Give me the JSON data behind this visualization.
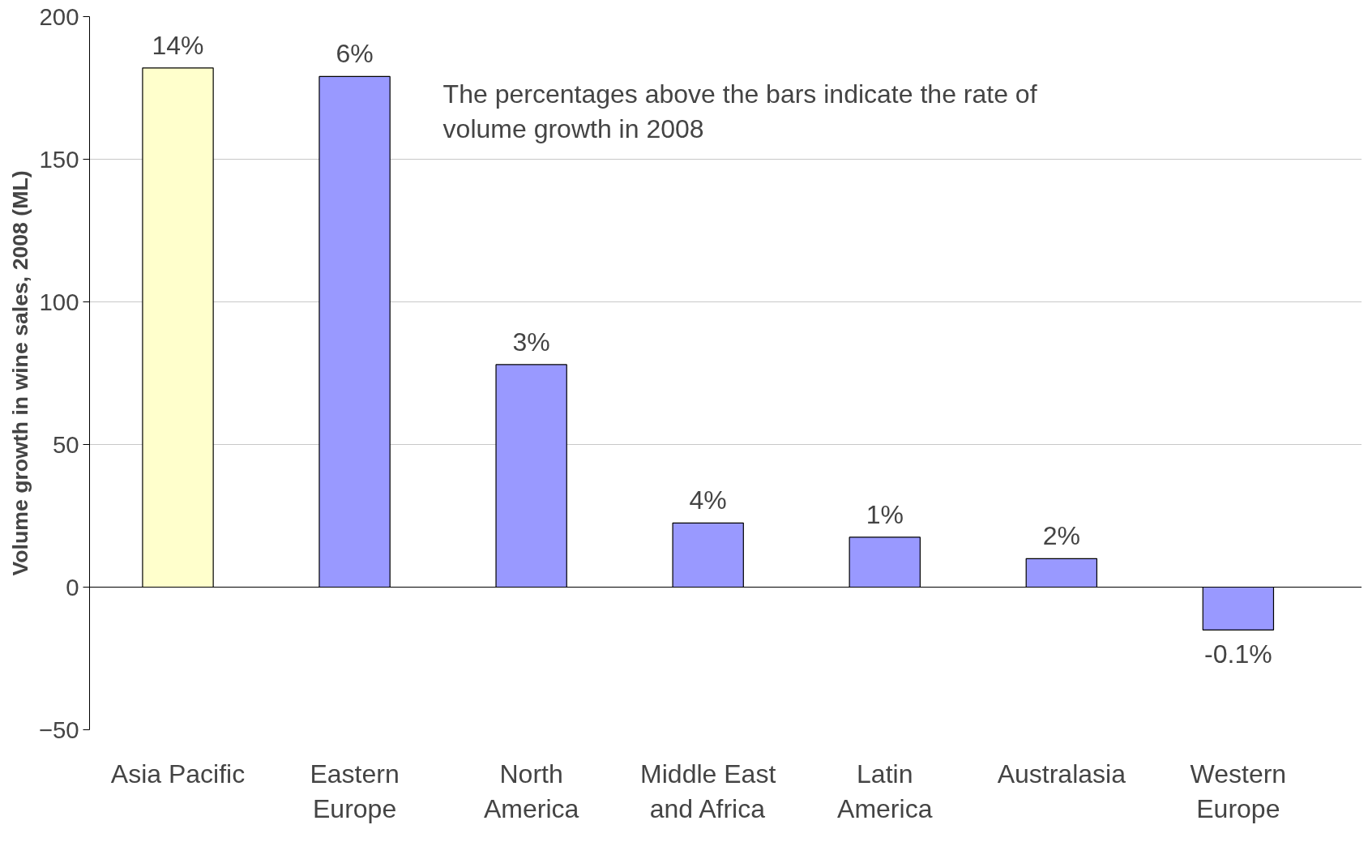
{
  "chart_data": {
    "type": "bar",
    "categories": [
      "Asia Pacific",
      "Eastern Europe",
      "North America",
      "Middle East and Africa",
      "Latin America",
      "Australasia",
      "Western Europe"
    ],
    "values": [
      182,
      179,
      78,
      22.5,
      17.5,
      10,
      -15
    ],
    "colors": [
      "#ffffcc",
      "#9999ff",
      "#9999ff",
      "#9999ff",
      "#9999ff",
      "#9999ff",
      "#9999ff"
    ],
    "ylabel": "Volume growth in wine sales, 2008 (ML)",
    "ylim": [
      -50,
      200
    ],
    "yticks": [
      -50,
      0,
      50,
      100,
      150,
      200
    ],
    "grid": "y",
    "annotations": [
      "The percentages above the bars indicate the rate of volume growth in 2008",
      {
        "text": "14%",
        "x": "Asia Pacific",
        "y": 182
      },
      {
        "text": "6%",
        "x": "Eastern Europe",
        "y": 179
      },
      {
        "text": "3%",
        "x": "North America",
        "y": 78
      },
      {
        "text": "4%",
        "x": "Middle East and Africa",
        "y": 22.5
      },
      {
        "text": "1%",
        "x": "Latin America",
        "y": 17.5
      },
      {
        "text": "2%",
        "x": "Australasia",
        "y": 10
      },
      {
        "text": "-0.1%",
        "x": "Western Europe",
        "y": -15
      }
    ]
  }
}
